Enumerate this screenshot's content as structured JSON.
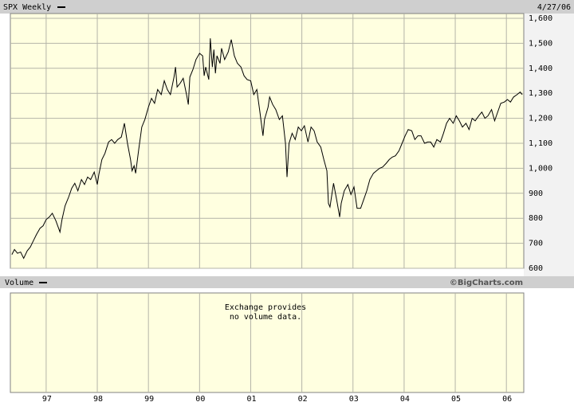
{
  "chart_data": {
    "type": "line",
    "date": "4/27/06",
    "volume_label": "Volume",
    "credit": "©BigCharts.com",
    "annotations": [
      "Exchange provides",
      "no volume data."
    ],
    "xlim": [
      1996.3,
      2006.34
    ],
    "ylim": [
      600,
      1600
    ],
    "xticks": [
      {
        "value": 1997,
        "label": "97"
      },
      {
        "value": 1998,
        "label": "98"
      },
      {
        "value": 1999,
        "label": "99"
      },
      {
        "value": 2000,
        "label": "00"
      },
      {
        "value": 2001,
        "label": "01"
      },
      {
        "value": 2002,
        "label": "02"
      },
      {
        "value": 2003,
        "label": "03"
      },
      {
        "value": 2004,
        "label": "04"
      },
      {
        "value": 2005,
        "label": "05"
      },
      {
        "value": 2006,
        "label": "06"
      }
    ],
    "yticks": [
      600,
      700,
      800,
      900,
      {
        "value": 1000,
        "label": "1,000"
      },
      {
        "value": 1100,
        "label": "1,100"
      },
      {
        "value": 1200,
        "label": "1,200"
      },
      {
        "value": 1300,
        "label": "1,300"
      },
      {
        "value": 1400,
        "label": "1,400"
      },
      {
        "value": 1500,
        "label": "1,500"
      },
      {
        "value": 1600,
        "label": "1,600"
      }
    ],
    "grid": true,
    "x": [
      1996.33,
      1996.38,
      1996.44,
      1996.5,
      1996.56,
      1996.63,
      1996.69,
      1996.75,
      1996.81,
      1996.88,
      1996.94,
      1997.0,
      1997.06,
      1997.12,
      1997.19,
      1997.27,
      1997.31,
      1997.37,
      1997.44,
      1997.5,
      1997.56,
      1997.62,
      1997.69,
      1997.75,
      1997.81,
      1997.87,
      1997.94,
      1998.0,
      1998.03,
      1998.09,
      1998.15,
      1998.22,
      1998.28,
      1998.34,
      1998.4,
      1998.47,
      1998.53,
      1998.59,
      1998.65,
      1998.68,
      1998.72,
      1998.75,
      1998.81,
      1998.87,
      1998.93,
      1999.0,
      1999.06,
      1999.12,
      1999.18,
      1999.25,
      1999.31,
      1999.37,
      1999.43,
      1999.5,
      1999.53,
      1999.56,
      1999.62,
      1999.68,
      1999.75,
      1999.78,
      1999.81,
      1999.87,
      1999.93,
      2000.0,
      2000.06,
      2000.09,
      2000.12,
      2000.18,
      2000.21,
      2000.25,
      2000.28,
      2000.31,
      2000.34,
      2000.4,
      2000.43,
      2000.49,
      2000.56,
      2000.62,
      2000.68,
      2000.74,
      2000.81,
      2000.87,
      2000.93,
      2001.0,
      2001.06,
      2001.12,
      2001.18,
      2001.24,
      2001.27,
      2001.34,
      2001.37,
      2001.43,
      2001.49,
      2001.56,
      2001.62,
      2001.68,
      2001.71,
      2001.75,
      2001.81,
      2001.87,
      2001.93,
      2001.99,
      2002.05,
      2002.12,
      2002.18,
      2002.24,
      2002.3,
      2002.37,
      2002.43,
      2002.49,
      2002.52,
      2002.55,
      2002.62,
      2002.68,
      2002.74,
      2002.77,
      2002.83,
      2002.9,
      2002.96,
      2003.02,
      2003.08,
      2003.15,
      2003.21,
      2003.27,
      2003.33,
      2003.4,
      2003.46,
      2003.52,
      2003.58,
      2003.65,
      2003.71,
      2003.77,
      2003.83,
      2003.9,
      2003.96,
      2004.02,
      2004.08,
      2004.15,
      2004.21,
      2004.27,
      2004.33,
      2004.4,
      2004.46,
      2004.52,
      2004.58,
      2004.64,
      2004.71,
      2004.77,
      2004.83,
      2004.89,
      2004.96,
      2005.02,
      2005.08,
      2005.14,
      2005.21,
      2005.27,
      2005.33,
      2005.39,
      2005.46,
      2005.52,
      2005.58,
      2005.64,
      2005.71,
      2005.77,
      2005.83,
      2005.89,
      2005.96,
      2006.02,
      2006.08,
      2006.14,
      2006.21,
      2006.27,
      2006.31
    ],
    "series": [
      {
        "name": "SPX Weekly",
        "color": "#000000",
        "values": [
          655,
          675,
          660,
          665,
          640,
          670,
          685,
          710,
          735,
          760,
          770,
          795,
          805,
          820,
          790,
          745,
          795,
          850,
          885,
          920,
          940,
          910,
          955,
          935,
          965,
          955,
          985,
          935,
          975,
          1035,
          1060,
          1105,
          1115,
          1100,
          1115,
          1125,
          1180,
          1100,
          1035,
          990,
          1010,
          980,
          1075,
          1165,
          1195,
          1245,
          1280,
          1260,
          1315,
          1295,
          1350,
          1315,
          1295,
          1365,
          1405,
          1325,
          1340,
          1360,
          1290,
          1255,
          1365,
          1395,
          1435,
          1460,
          1450,
          1370,
          1405,
          1355,
          1520,
          1405,
          1475,
          1380,
          1450,
          1420,
          1480,
          1435,
          1465,
          1515,
          1450,
          1420,
          1405,
          1370,
          1355,
          1350,
          1295,
          1315,
          1225,
          1130,
          1195,
          1245,
          1285,
          1255,
          1235,
          1195,
          1210,
          1100,
          965,
          1100,
          1140,
          1115,
          1165,
          1150,
          1170,
          1105,
          1165,
          1150,
          1105,
          1085,
          1035,
          990,
          860,
          845,
          940,
          875,
          805,
          860,
          910,
          935,
          895,
          925,
          840,
          840,
          875,
          910,
          955,
          980,
          990,
          1000,
          1005,
          1020,
          1035,
          1045,
          1050,
          1070,
          1100,
          1130,
          1155,
          1150,
          1115,
          1130,
          1130,
          1100,
          1105,
          1105,
          1085,
          1115,
          1105,
          1140,
          1180,
          1200,
          1180,
          1210,
          1190,
          1165,
          1180,
          1155,
          1200,
          1190,
          1210,
          1225,
          1200,
          1210,
          1235,
          1190,
          1225,
          1260,
          1265,
          1275,
          1265,
          1285,
          1295,
          1305,
          1295
        ]
      }
    ]
  }
}
